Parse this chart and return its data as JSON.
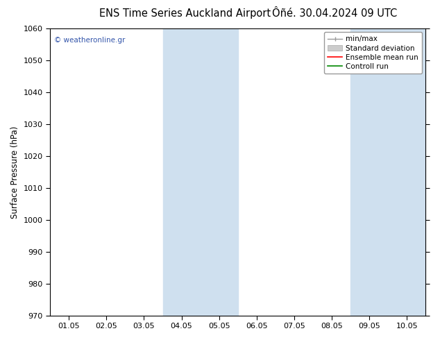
{
  "title_left": "ENS Time Series Auckland Airport",
  "title_right": "Ôñé. 30.04.2024 09 UTC",
  "ylabel": "Surface Pressure (hPa)",
  "ylim": [
    970,
    1060
  ],
  "yticks": [
    970,
    980,
    990,
    1000,
    1010,
    1020,
    1030,
    1040,
    1050,
    1060
  ],
  "x_labels": [
    "01.05",
    "02.05",
    "03.05",
    "04.05",
    "05.05",
    "06.05",
    "07.05",
    "08.05",
    "09.05",
    "10.05"
  ],
  "x_count": 10,
  "shaded_bands": [
    {
      "xmin": 3,
      "xmax": 5,
      "color": "#cfe0ef"
    },
    {
      "xmin": 8,
      "xmax": 10,
      "color": "#cfe0ef"
    }
  ],
  "watermark": "© weatheronline.gr",
  "watermark_color": "#3355aa",
  "legend_items": [
    {
      "label": "min/max",
      "color": "#aaaaaa",
      "style": "line_with_cap"
    },
    {
      "label": "Standard deviation",
      "color": "#cccccc",
      "style": "rect"
    },
    {
      "label": "Ensemble mean run",
      "color": "#ff0000",
      "style": "line"
    },
    {
      "label": "Controll run",
      "color": "#008800",
      "style": "line"
    }
  ],
  "bg_color": "#ffffff",
  "plot_bg_color": "#ffffff",
  "border_color": "#000000",
  "tick_color": "#000000",
  "title_fontsize": 10.5,
  "axis_label_fontsize": 8.5,
  "tick_fontsize": 8,
  "legend_fontsize": 7.5
}
